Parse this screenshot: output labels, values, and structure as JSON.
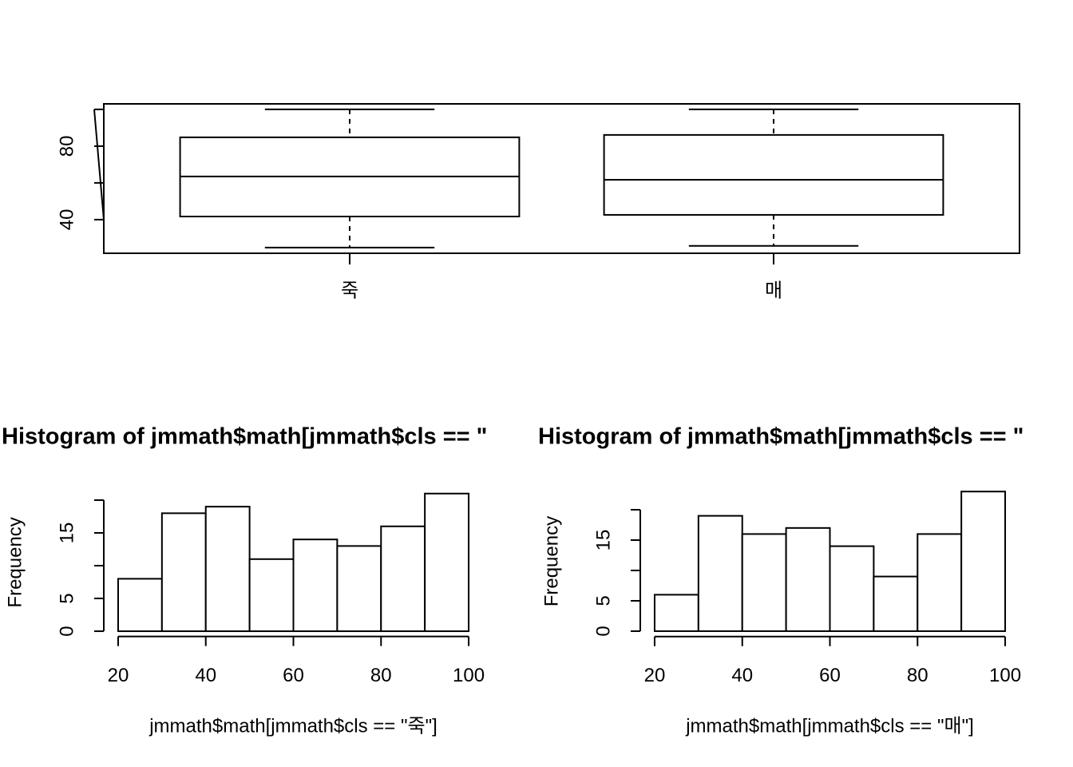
{
  "chart_data": [
    {
      "type": "box",
      "categories": [
        "죽",
        "매"
      ],
      "boxes": [
        {
          "min": 24.8,
          "q1": 41.7,
          "median": 63.5,
          "q3": 84.8,
          "max": 100
        },
        {
          "min": 25.7,
          "q1": 42.6,
          "median": 61.7,
          "q3": 86.1,
          "max": 100
        }
      ],
      "ylim": [
        21.7,
        103
      ],
      "yticks": [
        40,
        80
      ],
      "yticks_unlabeled": [
        60,
        100
      ],
      "color": "#000000"
    },
    {
      "type": "histogram",
      "title": "Histogram of jmmath$math[jmmath$cls == \"",
      "xlabel": "jmmath$math[jmmath$cls == \"죽\"]",
      "ylabel": "Frequency",
      "bins": [
        20,
        30,
        40,
        50,
        60,
        70,
        80,
        90,
        100
      ],
      "values": [
        8,
        18,
        19,
        11,
        14,
        13,
        16,
        21
      ],
      "xlim": [
        16.8,
        103.2
      ],
      "ylim": [
        -0.8,
        21.8
      ],
      "xticks": [
        20,
        40,
        60,
        80,
        100
      ],
      "yticks": [
        0,
        5,
        15
      ],
      "yticks_unlabeled": [
        10,
        20
      ],
      "color": "#ffffff"
    },
    {
      "type": "histogram",
      "title": "Histogram of jmmath$math[jmmath$cls == \"",
      "xlabel": "jmmath$math[jmmath$cls == \"매\"]",
      "ylabel": "Frequency",
      "bins": [
        20,
        30,
        40,
        50,
        60,
        70,
        80,
        90,
        100
      ],
      "values": [
        6,
        19,
        16,
        17,
        14,
        9,
        16,
        23
      ],
      "xlim": [
        16.8,
        103.2
      ],
      "ylim": [
        -0.9,
        23.9
      ],
      "xticks": [
        20,
        40,
        60,
        80,
        100
      ],
      "yticks": [
        0,
        5,
        15
      ],
      "yticks_unlabeled": [
        10,
        20
      ],
      "color": "#ffffff"
    }
  ]
}
